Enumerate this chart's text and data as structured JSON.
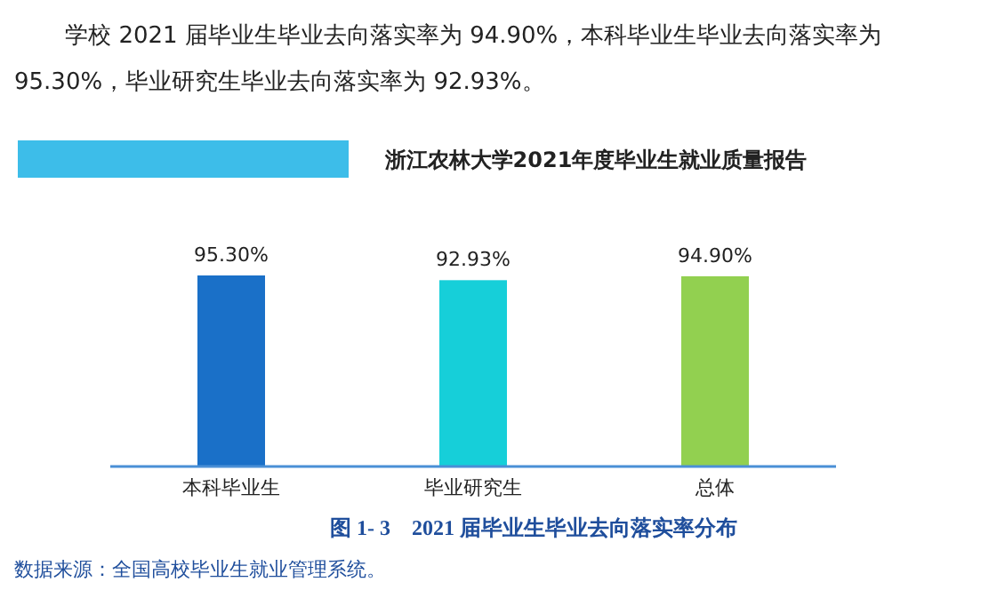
{
  "chart_data": {
    "type": "bar",
    "title": "图 1- 3　2021 届毕业生毕业去向落实率分布",
    "subtitle": "浙江农林大学2021年度毕业生就业质量报告",
    "annotations": [
      "学校 2021 届毕业生毕业去向落实率为 94.90%，本科毕业生毕业去向落实率为 95.30%，毕业研究生毕业去向落实率为 92.93%。",
      "数据来源：全国高校毕业生就业管理系统。"
    ],
    "categories": [
      "本科毕业生",
      "毕业研究生",
      "总体"
    ],
    "values": [
      95.3,
      92.93,
      94.9
    ],
    "value_labels": [
      "95.30%",
      "92.93%",
      "94.90%"
    ],
    "colors": [
      "#1a70c8",
      "#16cfd9",
      "#92d050"
    ]
  }
}
